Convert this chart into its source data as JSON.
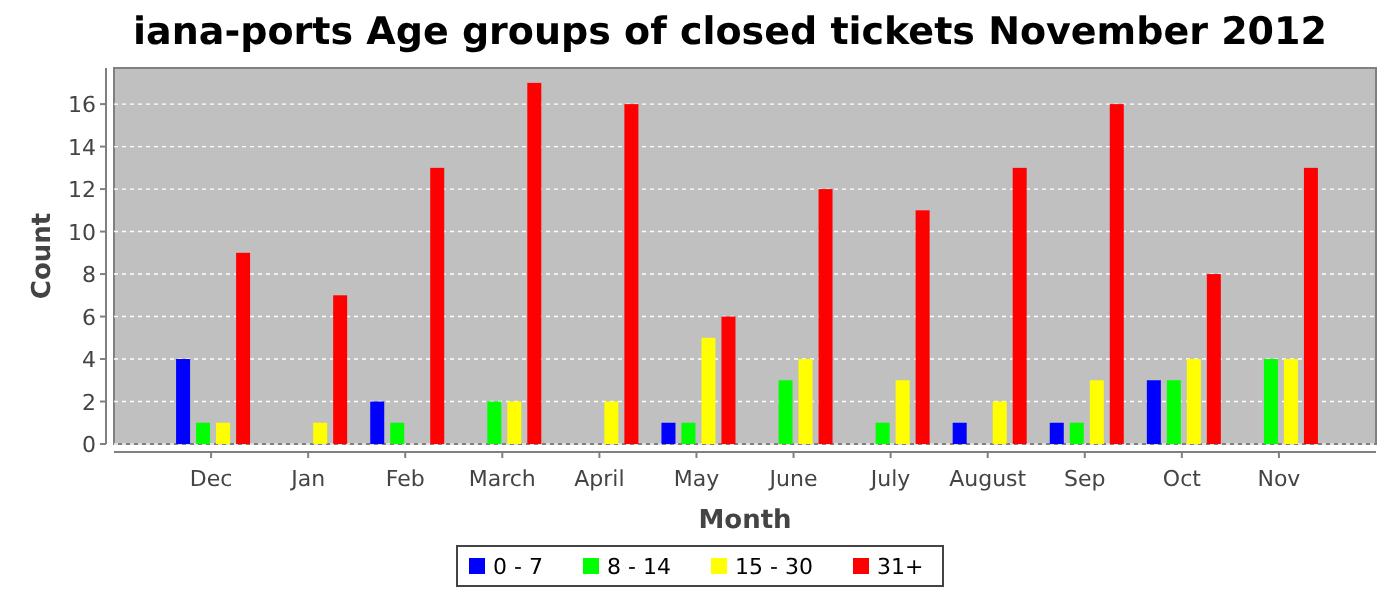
{
  "chart_data": {
    "type": "bar",
    "title": "iana-ports Age groups of closed tickets November 2012",
    "xlabel": "Month",
    "ylabel": "Count",
    "categories": [
      "Dec",
      "Jan",
      "Feb",
      "March",
      "April",
      "May",
      "June",
      "July",
      "August",
      "Sep",
      "Oct",
      "Nov"
    ],
    "series": [
      {
        "name": "0 - 7",
        "color": "#0000ff",
        "values": [
          4,
          0,
          2,
          0,
          0,
          1,
          0,
          0,
          1,
          1,
          3,
          0
        ]
      },
      {
        "name": "8 - 14",
        "color": "#00ff00",
        "values": [
          1,
          0,
          1,
          2,
          0,
          1,
          3,
          1,
          0,
          1,
          3,
          4
        ]
      },
      {
        "name": "15 - 30",
        "color": "#ffff00",
        "values": [
          1,
          1,
          0,
          2,
          2,
          5,
          4,
          3,
          2,
          3,
          4,
          4
        ]
      },
      {
        "name": "31+",
        "color": "#ff0000",
        "values": [
          9,
          7,
          13,
          17,
          16,
          6,
          12,
          11,
          13,
          16,
          8,
          13
        ]
      }
    ],
    "ylim": [
      0,
      17.7
    ],
    "yticks": [
      0,
      2,
      4,
      6,
      8,
      10,
      12,
      14,
      16
    ],
    "grid": "y",
    "legend": "bottom"
  }
}
